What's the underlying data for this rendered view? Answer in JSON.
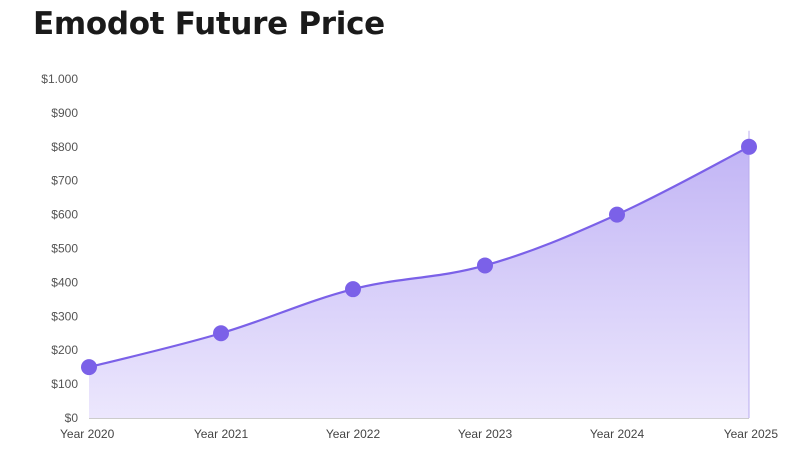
{
  "page": {
    "title": "Emodot Future Price"
  },
  "colors": {
    "line": "#7b61e8",
    "point": "#7b61e8",
    "area_top": "#c2b5f5",
    "area_bottom": "#ece7fd",
    "axis": "#cccccc",
    "text": "#555555"
  },
  "chart_data": {
    "type": "area",
    "title": "Emodot Future Price",
    "xlabel": "",
    "ylabel": "",
    "categories": [
      "Year 2020",
      "Year 2021",
      "Year 2022",
      "Year 2023",
      "Year 2024",
      "Year 2025"
    ],
    "series": [
      {
        "values": [
          150,
          250,
          380,
          450,
          600,
          800
        ]
      }
    ],
    "ylim": [
      0,
      1000
    ],
    "yticks": [
      0,
      100,
      200,
      300,
      400,
      500,
      600,
      700,
      800,
      900,
      1000
    ],
    "ytick_labels": [
      "$0",
      "$100",
      "$200",
      "$300",
      "$400",
      "$500",
      "$600",
      "$700",
      "$800",
      "$900",
      "$1.000"
    ],
    "grid": false,
    "smooth": true,
    "legend": "none"
  }
}
